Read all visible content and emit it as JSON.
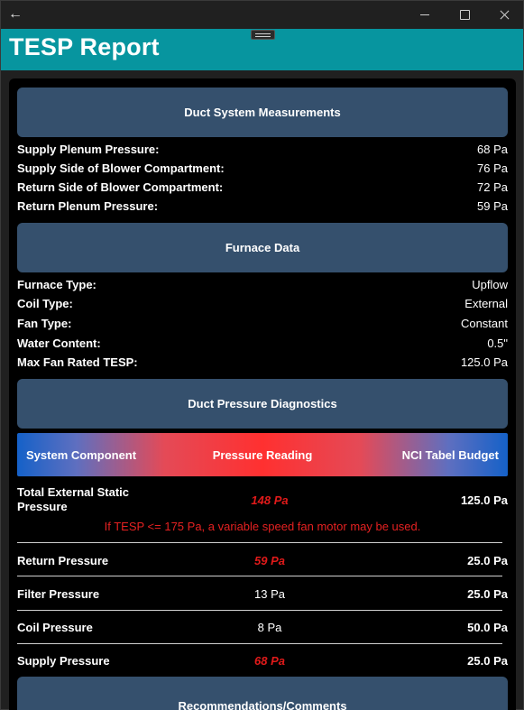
{
  "window": {
    "controls": [
      "minimize",
      "maximize",
      "close"
    ]
  },
  "app": {
    "title": "TESP Report"
  },
  "duct_system": {
    "header": "Duct System Measurements",
    "items": [
      {
        "label": "Supply Plenum Pressure:",
        "value": "68 Pa"
      },
      {
        "label": "Supply Side of Blower Compartment:",
        "value": "76 Pa"
      },
      {
        "label": "Return Side of Blower Compartment:",
        "value": "72 Pa"
      },
      {
        "label": "Return Plenum Pressure:",
        "value": "59 Pa"
      }
    ]
  },
  "furnace": {
    "header": "Furnace Data",
    "items": [
      {
        "label": "Furnace Type:",
        "value": "Upflow"
      },
      {
        "label": "Coil Type:",
        "value": "External"
      },
      {
        "label": "Fan Type:",
        "value": "Constant"
      },
      {
        "label": "Water Content:",
        "value": "0.5\""
      },
      {
        "label": "Max Fan Rated TESP:",
        "value": "125.0 Pa"
      }
    ]
  },
  "diagnostics": {
    "header": "Duct Pressure Diagnostics",
    "columns": {
      "component": "System Component",
      "reading": "Pressure Reading",
      "budget": "NCI Tabel Budget"
    },
    "tesp": {
      "name_line1": "Total External Static",
      "name_line2": "Pressure",
      "reading": "148 Pa",
      "budget": "125.0 Pa",
      "note": "If TESP <= 175 Pa, a variable speed fan motor may be used."
    },
    "rows": [
      {
        "name": "Return Pressure",
        "reading": "59 Pa",
        "budget": "25.0 Pa"
      },
      {
        "name": "Filter Pressure",
        "reading": "13 Pa",
        "budget": "25.0 Pa"
      },
      {
        "name": "Coil Pressure",
        "reading": "8 Pa",
        "budget": "50.0 Pa"
      },
      {
        "name": "Supply Pressure",
        "reading": "68 Pa",
        "budget": "25.0 Pa"
      }
    ]
  },
  "recommendations": {
    "header": "Recommendations/Comments"
  },
  "colors": {
    "accent": "#07959f",
    "section": "#35506d",
    "alert": "#e01a1a"
  }
}
